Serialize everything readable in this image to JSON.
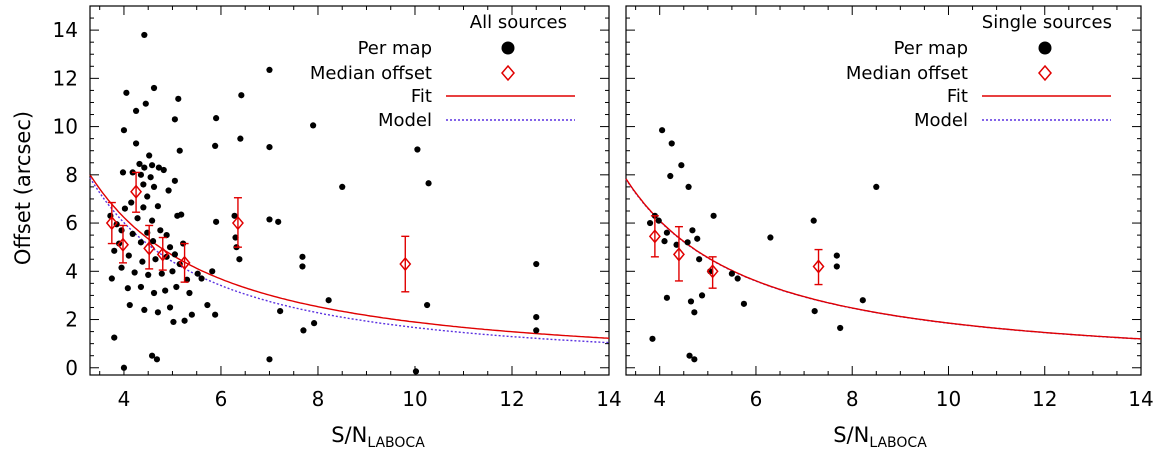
{
  "chart_data": [
    {
      "type": "scatter",
      "panel": "left",
      "legend_title": "All sources",
      "legend": {
        "per_map": "Per map",
        "median": "Median offset",
        "fit": "Fit",
        "model": "Model"
      },
      "xlabel_main": "S/N",
      "xlabel_sub": "LABOCA",
      "ylabel": "Offset (arcsec)",
      "xlim": [
        3.3,
        14
      ],
      "ylim": [
        -0.3,
        15
      ],
      "xticks": [
        "4",
        "6",
        "8",
        "10",
        "12",
        "14"
      ],
      "yticks": [
        "0",
        "2",
        "4",
        "6",
        "8",
        "10",
        "12",
        "14"
      ],
      "colors": {
        "points": "#000000",
        "median": "#e00000",
        "fit": "#e00000",
        "model": "#5a30e0"
      },
      "fit_curve": {
        "amplitude": 37.8,
        "exponent": -1.3,
        "x_from": 3.3
      },
      "model_curve": {
        "amplitude": 41.9,
        "exponent": -1.4,
        "x_from": 3.3
      },
      "per_map": [
        [
          4.42,
          13.8
        ],
        [
          4.62,
          11.6
        ],
        [
          4.05,
          11.4
        ],
        [
          4.45,
          10.95
        ],
        [
          4.25,
          10.65
        ],
        [
          4.0,
          9.85
        ],
        [
          4.25,
          9.3
        ],
        [
          4.52,
          8.8
        ],
        [
          4.32,
          8.45
        ],
        [
          4.58,
          8.4
        ],
        [
          4.42,
          8.3
        ],
        [
          4.72,
          8.3
        ],
        [
          4.18,
          8.1
        ],
        [
          3.98,
          8.1
        ],
        [
          4.35,
          8.0
        ],
        [
          4.55,
          7.9
        ],
        [
          4.4,
          7.6
        ],
        [
          4.62,
          7.5
        ],
        [
          4.82,
          8.2
        ],
        [
          4.48,
          7.1
        ],
        [
          4.92,
          7.35
        ],
        [
          4.15,
          6.85
        ],
        [
          4.4,
          6.65
        ],
        [
          4.7,
          6.7
        ],
        [
          4.02,
          6.6
        ],
        [
          3.72,
          6.3
        ],
        [
          4.28,
          6.2
        ],
        [
          4.58,
          6.1
        ],
        [
          3.85,
          5.95
        ],
        [
          3.95,
          5.7
        ],
        [
          4.18,
          5.55
        ],
        [
          4.48,
          5.6
        ],
        [
          4.75,
          5.7
        ],
        [
          4.88,
          5.5
        ],
        [
          3.9,
          5.15
        ],
        [
          4.35,
          5.2
        ],
        [
          4.6,
          5.25
        ],
        [
          4.95,
          5.0
        ],
        [
          3.8,
          4.85
        ],
        [
          4.1,
          4.65
        ],
        [
          4.38,
          4.4
        ],
        [
          4.65,
          4.5
        ],
        [
          4.88,
          4.6
        ],
        [
          5.05,
          4.7
        ],
        [
          3.95,
          4.15
        ],
        [
          4.22,
          3.95
        ],
        [
          4.5,
          3.85
        ],
        [
          4.78,
          3.9
        ],
        [
          5.0,
          4.0
        ],
        [
          5.15,
          4.3
        ],
        [
          3.75,
          3.7
        ],
        [
          4.08,
          3.3
        ],
        [
          4.35,
          3.35
        ],
        [
          4.62,
          3.1
        ],
        [
          4.85,
          3.2
        ],
        [
          5.08,
          3.35
        ],
        [
          4.12,
          2.6
        ],
        [
          4.42,
          2.4
        ],
        [
          4.7,
          2.3
        ],
        [
          4.95,
          2.5
        ],
        [
          3.8,
          1.25
        ],
        [
          4.0,
          0.0
        ],
        [
          4.58,
          0.5
        ],
        [
          4.68,
          0.35
        ],
        [
          5.05,
          10.3
        ],
        [
          5.12,
          11.15
        ],
        [
          5.15,
          9.0
        ],
        [
          5.05,
          7.75
        ],
        [
          5.1,
          6.3
        ],
        [
          5.18,
          6.35
        ],
        [
          5.22,
          5.15
        ],
        [
          5.3,
          3.65
        ],
        [
          5.35,
          3.1
        ],
        [
          5.4,
          2.2
        ],
        [
          5.25,
          1.95
        ],
        [
          5.02,
          1.9
        ],
        [
          5.6,
          3.7
        ],
        [
          5.52,
          3.9
        ],
        [
          5.72,
          2.6
        ],
        [
          5.88,
          2.2
        ],
        [
          5.82,
          4.0
        ],
        [
          5.9,
          6.05
        ],
        [
          5.88,
          9.2
        ],
        [
          5.9,
          10.35
        ],
        [
          6.28,
          6.3
        ],
        [
          6.3,
          5.4
        ],
        [
          6.32,
          5.0
        ],
        [
          6.38,
          4.5
        ],
        [
          6.4,
          9.5
        ],
        [
          6.42,
          11.3
        ],
        [
          7.0,
          12.35
        ],
        [
          7.0,
          9.15
        ],
        [
          7.0,
          6.15
        ],
        [
          7.18,
          6.05
        ],
        [
          7.22,
          2.35
        ],
        [
          7.0,
          0.35
        ],
        [
          7.68,
          4.6
        ],
        [
          7.68,
          4.2
        ],
        [
          7.7,
          1.55
        ],
        [
          7.92,
          1.85
        ],
        [
          7.9,
          10.05
        ],
        [
          8.22,
          2.8
        ],
        [
          8.5,
          7.5
        ],
        [
          10.05,
          9.05
        ],
        [
          10.02,
          -0.15
        ],
        [
          10.28,
          7.65
        ],
        [
          10.25,
          2.6
        ],
        [
          12.5,
          4.3
        ],
        [
          12.5,
          2.1
        ],
        [
          12.5,
          1.55
        ]
      ],
      "medians": [
        {
          "x": 3.75,
          "y": 6.0,
          "lo": 5.15,
          "hi": 6.85
        },
        {
          "x": 3.98,
          "y": 5.1,
          "lo": 4.35,
          "hi": 5.9
        },
        {
          "x": 4.25,
          "y": 7.3,
          "lo": 6.45,
          "hi": 8.1
        },
        {
          "x": 4.52,
          "y": 4.95,
          "lo": 4.1,
          "hi": 5.9
        },
        {
          "x": 4.8,
          "y": 4.7,
          "lo": 4.05,
          "hi": 5.4
        },
        {
          "x": 5.25,
          "y": 4.35,
          "lo": 3.55,
          "hi": 5.15
        },
        {
          "x": 6.35,
          "y": 6.0,
          "lo": 5.0,
          "hi": 7.05
        },
        {
          "x": 9.8,
          "y": 4.3,
          "lo": 3.15,
          "hi": 5.45
        }
      ]
    },
    {
      "type": "scatter",
      "panel": "right",
      "legend_title": "Single sources",
      "legend": {
        "per_map": "Per map",
        "median": "Median offset",
        "fit": "Fit",
        "model": "Model"
      },
      "xlabel_main": "S/N",
      "xlabel_sub": "LABOCA",
      "ylabel": "",
      "xlim": [
        3.3,
        14
      ],
      "ylim": [
        -0.3,
        15
      ],
      "xticks": [
        "4",
        "6",
        "8",
        "10",
        "12",
        "14"
      ],
      "yticks": [],
      "colors": {
        "points": "#000000",
        "median": "#e00000",
        "fit": "#e00000",
        "model": "#5a30e0"
      },
      "fit_curve": {
        "amplitude": 37.0,
        "exponent": -1.3,
        "x_from": 3.3
      },
      "model_curve": {
        "amplitude": 36.9,
        "exponent": -1.3,
        "x_from": 3.3
      },
      "per_map": [
        [
          4.05,
          9.85
        ],
        [
          4.25,
          9.3
        ],
        [
          4.45,
          8.4
        ],
        [
          4.22,
          7.95
        ],
        [
          4.6,
          7.5
        ],
        [
          3.98,
          6.1
        ],
        [
          3.8,
          6.0
        ],
        [
          3.9,
          6.3
        ],
        [
          4.15,
          5.6
        ],
        [
          4.1,
          5.25
        ],
        [
          4.35,
          5.1
        ],
        [
          4.58,
          5.2
        ],
        [
          4.78,
          5.35
        ],
        [
          4.68,
          5.7
        ],
        [
          4.82,
          4.5
        ],
        [
          5.05,
          4.0
        ],
        [
          4.88,
          3.0
        ],
        [
          4.65,
          2.75
        ],
        [
          4.72,
          2.3
        ],
        [
          4.15,
          2.9
        ],
        [
          3.85,
          1.2
        ],
        [
          4.62,
          0.5
        ],
        [
          4.72,
          0.35
        ],
        [
          5.12,
          6.3
        ],
        [
          5.5,
          3.9
        ],
        [
          5.62,
          3.7
        ],
        [
          5.75,
          2.65
        ],
        [
          6.3,
          5.4
        ],
        [
          7.2,
          6.1
        ],
        [
          7.22,
          2.35
        ],
        [
          7.68,
          4.65
        ],
        [
          7.68,
          4.2
        ],
        [
          7.75,
          1.65
        ],
        [
          8.22,
          2.8
        ],
        [
          8.5,
          7.5
        ]
      ],
      "medians": [
        {
          "x": 3.9,
          "y": 5.45,
          "lo": 4.6,
          "hi": 6.3
        },
        {
          "x": 4.4,
          "y": 4.7,
          "lo": 3.6,
          "hi": 5.85
        },
        {
          "x": 5.1,
          "y": 4.0,
          "lo": 3.3,
          "hi": 4.6
        },
        {
          "x": 7.3,
          "y": 4.2,
          "lo": 3.45,
          "hi": 4.9
        }
      ]
    }
  ]
}
